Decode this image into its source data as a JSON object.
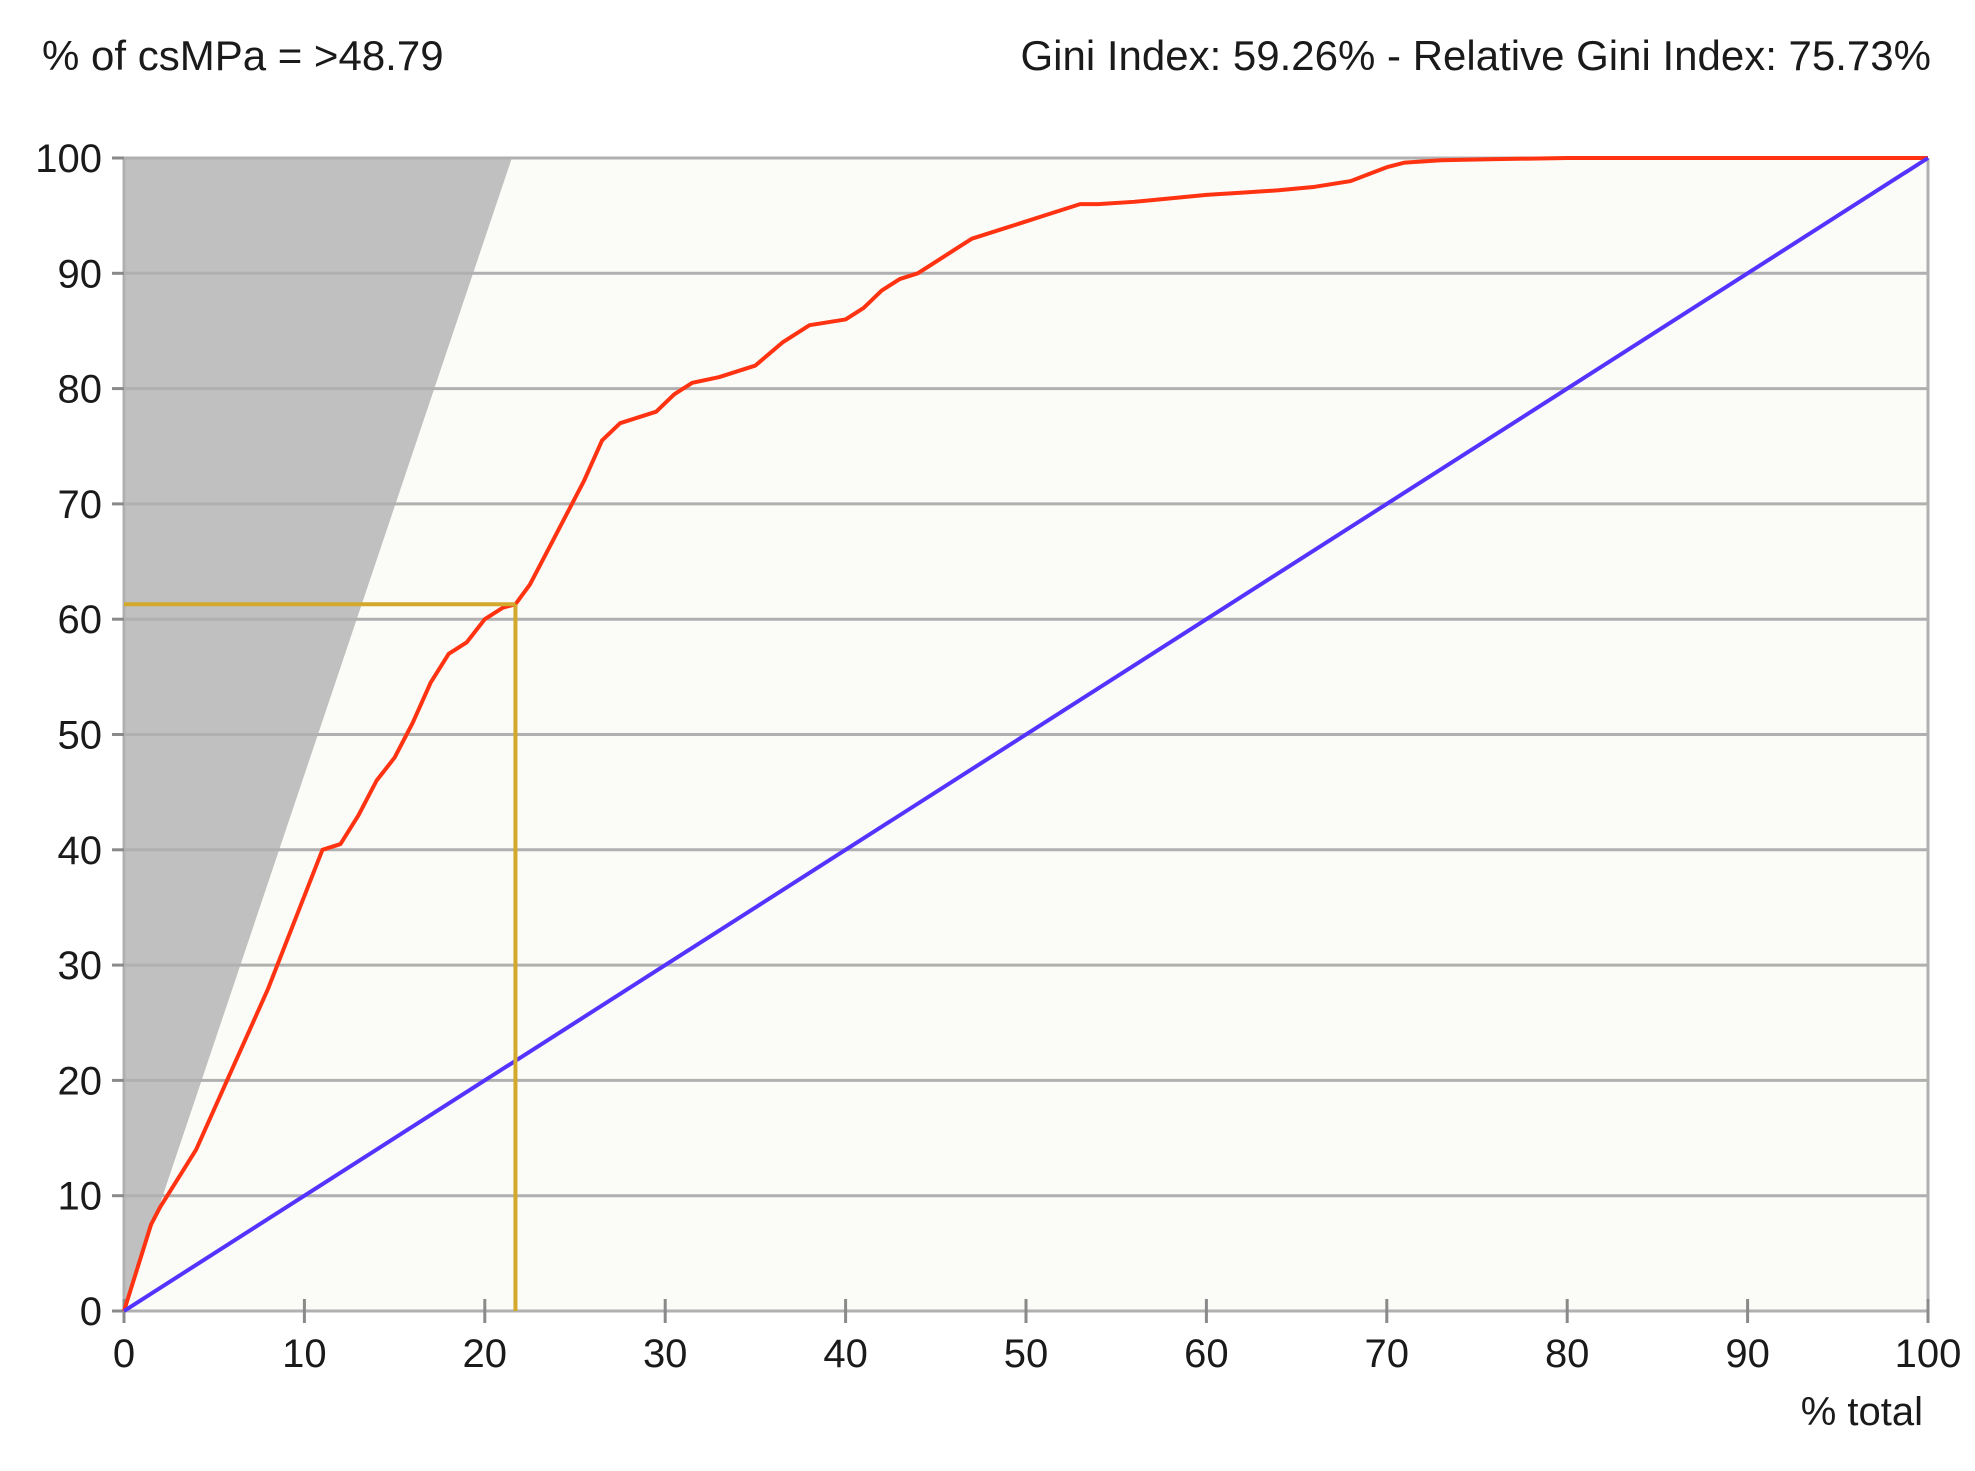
{
  "chart_data": {
    "type": "line",
    "title_left": "% of csMPa = >48.79",
    "title_right": "Gini Index: 59.26% - Relative Gini Index: 75.73%",
    "xlabel": "% total",
    "ylabel": "",
    "xlim": [
      0,
      100
    ],
    "ylim": [
      0,
      100
    ],
    "x_ticks": [
      0,
      10,
      20,
      30,
      40,
      50,
      60,
      70,
      80,
      90,
      100
    ],
    "y_ticks": [
      0,
      10,
      20,
      30,
      40,
      50,
      60,
      70,
      80,
      90,
      100
    ],
    "grid": "horizontal",
    "colors": {
      "plot_background": "#fbfbf7",
      "grid": "#b0b0b0",
      "ideal_area": "#c0c0c0",
      "gains_curve": "#ff3311",
      "diagonal": "#5533ff",
      "marker": "#d4a82a"
    },
    "ideal_area": {
      "x": [
        0,
        21.5,
        0
      ],
      "y": [
        0,
        100,
        100
      ]
    },
    "marker_point": {
      "x": 21.7,
      "y": 61.3
    },
    "series": [
      {
        "x": [
          0,
          0.5,
          1,
          1.5,
          2,
          3,
          4,
          5,
          6,
          7,
          8,
          9,
          10,
          11,
          12,
          13,
          14,
          15,
          16,
          17,
          18,
          19,
          20,
          21,
          21.7,
          22.5,
          23.5,
          24.5,
          25.5,
          26.5,
          27.5,
          28.5,
          29.5,
          30.5,
          31.5,
          33,
          35,
          36.5,
          38,
          40,
          41,
          42,
          43,
          44,
          45,
          46,
          47,
          48,
          49,
          50,
          51,
          52,
          53,
          54,
          56,
          58,
          60,
          62,
          64,
          66,
          68,
          69,
          70,
          71,
          73,
          76,
          80,
          85,
          90,
          94,
          95,
          100
        ],
        "y": [
          0,
          2.5,
          5,
          7.5,
          9,
          11.5,
          14,
          17.5,
          21,
          24.5,
          28,
          32,
          36,
          40,
          40.5,
          43,
          46,
          48,
          51,
          54.5,
          57,
          58,
          60,
          61,
          61.3,
          63,
          66,
          69,
          72,
          75.5,
          77,
          77.5,
          78,
          79.5,
          80.5,
          81,
          82,
          84,
          85.5,
          86,
          87,
          88.5,
          89.5,
          90,
          91,
          92,
          93,
          93.5,
          94,
          94.5,
          95,
          95.5,
          96,
          96,
          96.2,
          96.5,
          96.8,
          97,
          97.2,
          97.5,
          98,
          98.6,
          99.2,
          99.6,
          99.8,
          99.9,
          100,
          100,
          100,
          100,
          100,
          100
        ]
      },
      {
        "x": [
          0,
          100
        ],
        "y": [
          0,
          100
        ]
      }
    ]
  }
}
